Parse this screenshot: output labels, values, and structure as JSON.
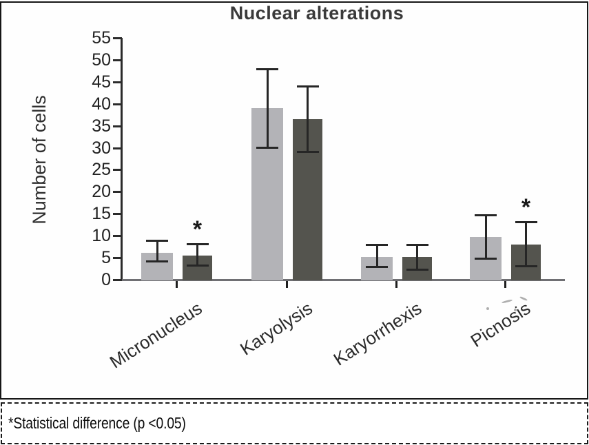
{
  "chart_data": {
    "type": "bar",
    "title": "Nuclear alterations",
    "ylabel": "Number of cells",
    "xlabel": "",
    "categories": [
      "Micronucleus",
      "Karyolysis",
      "Karyorrhexis",
      "Picnosis"
    ],
    "ylim": [
      0,
      55
    ],
    "ytick_step": 5,
    "grid": false,
    "legend_position": "none",
    "series": [
      {
        "name": "light-gray-bars",
        "color": "#b3b3b7",
        "values": [
          6.1,
          39,
          5.2,
          9.7
        ],
        "error_low": [
          4,
          30,
          2.8,
          4.7
        ],
        "error_high": [
          9,
          48,
          8,
          14.8
        ],
        "significant": [
          false,
          false,
          false,
          false
        ]
      },
      {
        "name": "dark-gray-bars",
        "color": "#54544e",
        "values": [
          5.5,
          36.5,
          5.2,
          8
        ],
        "error_low": [
          3.2,
          29,
          2.2,
          3
        ],
        "error_high": [
          8.1,
          44,
          8,
          13.2
        ],
        "significant": [
          true,
          false,
          false,
          true
        ]
      }
    ],
    "annotations": {
      "significance_marker": "*"
    }
  },
  "footnote": {
    "text": "*Statistical difference (p <0.05)"
  },
  "colors": {
    "axis": "#2b2b2b",
    "baseline": "#6f6f73",
    "bar_light": "#b3b3b7",
    "bar_dark": "#54544e",
    "title_text": "#3a3a3a"
  }
}
